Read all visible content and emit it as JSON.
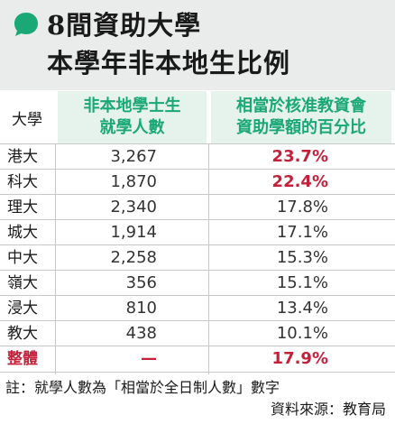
{
  "header": {
    "title_line1": "8間資助大學",
    "title_line2": "本學年非本地生比例"
  },
  "columns": {
    "university": "大學",
    "students": "非本地學士生\n就學人數",
    "percentage": "相當於核准教資會\n資助學額的百分比"
  },
  "rows": [
    {
      "university": "港大",
      "students": "3,267",
      "percentage": "23.7%"
    },
    {
      "university": "科大",
      "students": "1,870",
      "percentage": "22.4%"
    },
    {
      "university": "理大",
      "students": "2,340",
      "percentage": "17.8%"
    },
    {
      "university": "城大",
      "students": "1,914",
      "percentage": "17.1%"
    },
    {
      "university": "中大",
      "students": "2,258",
      "percentage": "15.3%"
    },
    {
      "university": "嶺大",
      "students": "356",
      "percentage": "15.1%"
    },
    {
      "university": "浸大",
      "students": "810",
      "percentage": "13.4%"
    },
    {
      "university": "教大",
      "students": "438",
      "percentage": "10.1%"
    }
  ],
  "total": {
    "university": "整體",
    "students": "—",
    "percentage": "17.9%"
  },
  "footer": {
    "note": "註：就學人數為「相當於全日制人數」數字",
    "source": "資料來源：教育局"
  },
  "colors": {
    "accent_green": "#1aa876",
    "highlight_red": "#c5203a",
    "header_bg": "#e9ecea",
    "column_bg": "#e6f2ec"
  },
  "icons": {
    "title_marker": "speech-bubble-icon"
  }
}
